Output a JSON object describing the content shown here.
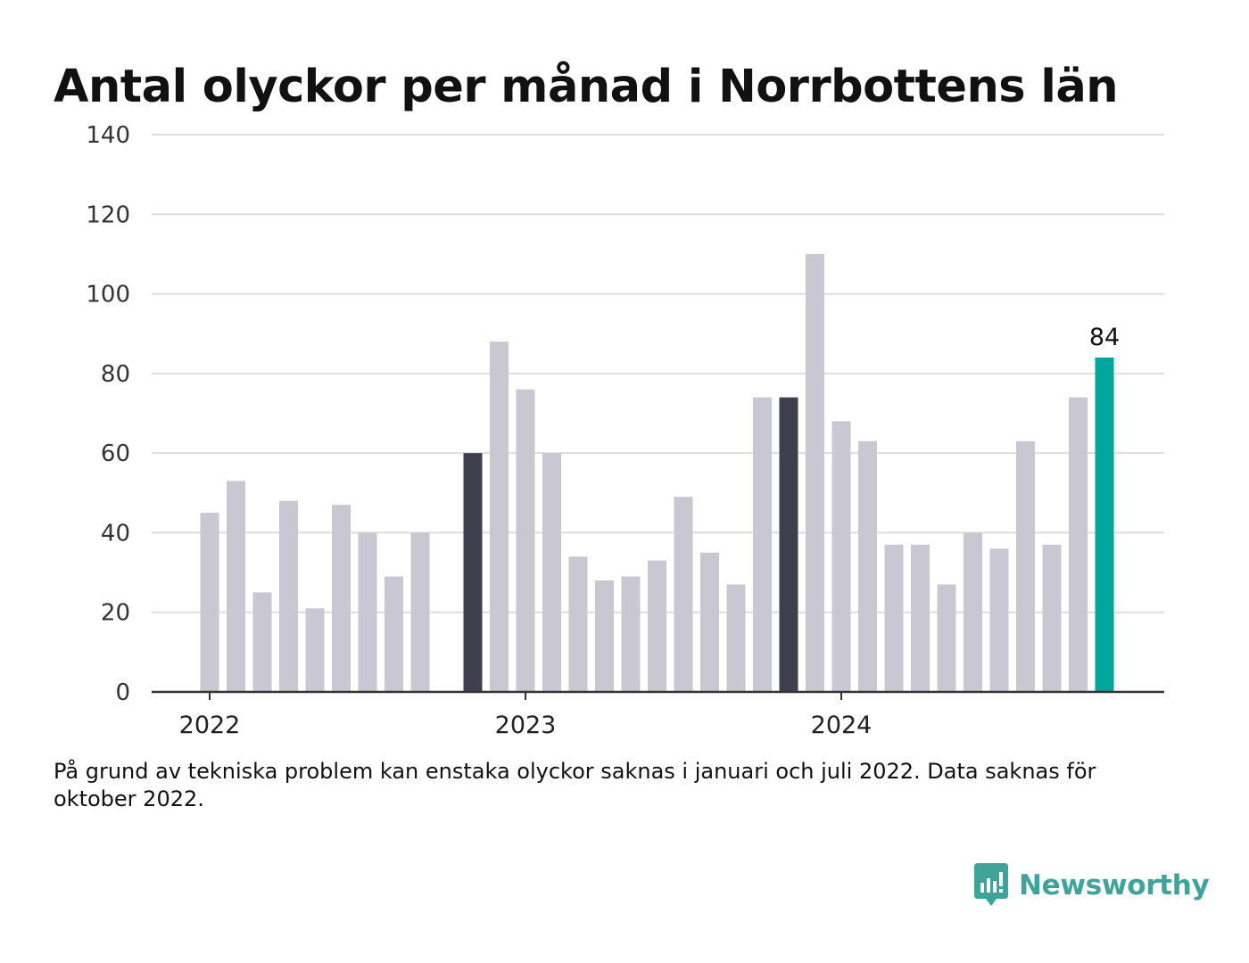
{
  "chart_data": {
    "type": "bar",
    "title": "Antal olyckor per månad i Norrbottens län",
    "xlabel": "",
    "ylabel": "",
    "ylim": [
      0,
      140
    ],
    "y_ticks": [
      0,
      20,
      40,
      60,
      80,
      100,
      120,
      140
    ],
    "x_ticks": [
      {
        "label": "2022",
        "index": 0
      },
      {
        "label": "2023",
        "index": 12
      },
      {
        "label": "2024",
        "index": 24
      }
    ],
    "grid": true,
    "legend": "none",
    "categories": [
      "2022-01",
      "2022-02",
      "2022-03",
      "2022-04",
      "2022-05",
      "2022-06",
      "2022-07",
      "2022-08",
      "2022-09",
      "2022-10",
      "2022-11",
      "2022-12",
      "2023-01",
      "2023-02",
      "2023-03",
      "2023-04",
      "2023-05",
      "2023-06",
      "2023-07",
      "2023-08",
      "2023-09",
      "2023-10",
      "2023-11",
      "2023-12",
      "2024-01",
      "2024-02",
      "2024-03",
      "2024-04",
      "2024-05",
      "2024-06",
      "2024-07",
      "2024-08",
      "2024-09",
      "2024-10",
      "2024-11",
      "2024-12"
    ],
    "values": [
      45,
      53,
      25,
      48,
      21,
      47,
      40,
      29,
      40,
      null,
      60,
      88,
      76,
      60,
      34,
      28,
      29,
      33,
      49,
      35,
      27,
      74,
      74,
      110,
      68,
      63,
      37,
      37,
      27,
      40,
      36,
      63,
      37,
      74,
      84,
      null
    ],
    "highlight_dark": [
      "2022-11",
      "2023-11"
    ],
    "highlight_accent": [
      "2024-11"
    ],
    "data_labels": [
      {
        "category": "2024-11",
        "text": "84"
      }
    ],
    "colors": {
      "default": "#c8c7d2",
      "dark": "#3f3f4e",
      "accent": "#00a59b",
      "grid": "#dddddd",
      "axis": "#333333"
    }
  },
  "note": "På grund av tekniska problem kan enstaka olyckor saknas i januari och juli 2022. Data saknas för oktober 2022.",
  "brand": {
    "name": "Newsworthy",
    "logo_icon": "newsworthy-logo-icon",
    "color": "#3fa39a"
  }
}
